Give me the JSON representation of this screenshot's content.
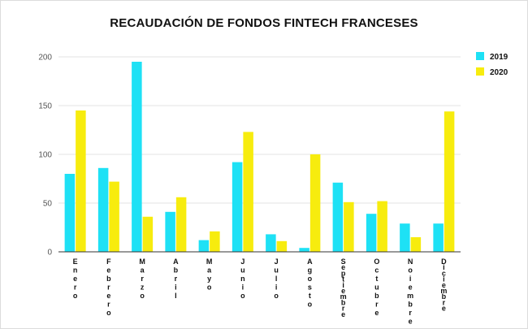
{
  "chart_data": {
    "type": "bar",
    "title": "RECAUDACIÓN DE FONDOS FINTECH FRANCESES",
    "xlabel": "",
    "ylabel": "",
    "ylim": [
      0,
      200
    ],
    "yticks": [
      0,
      50,
      100,
      150,
      200
    ],
    "grid": true,
    "legend_position": "top-right",
    "categories": [
      "Enero",
      "Febrero",
      "Marzo",
      "Abril",
      "Mayo",
      "Junio",
      "Julio",
      "Agosto",
      "Septiembre",
      "Octubre",
      "Noiembre",
      "Diciembre"
    ],
    "series": [
      {
        "name": "2019",
        "color": "#1ee1f5",
        "values": [
          80,
          86,
          195,
          41,
          12,
          92,
          18,
          4,
          71,
          39,
          29,
          29
        ]
      },
      {
        "name": "2020",
        "color": "#f7ec0e",
        "values": [
          145,
          72,
          36,
          56,
          21,
          123,
          11,
          100,
          51,
          52,
          15,
          144
        ]
      }
    ]
  }
}
